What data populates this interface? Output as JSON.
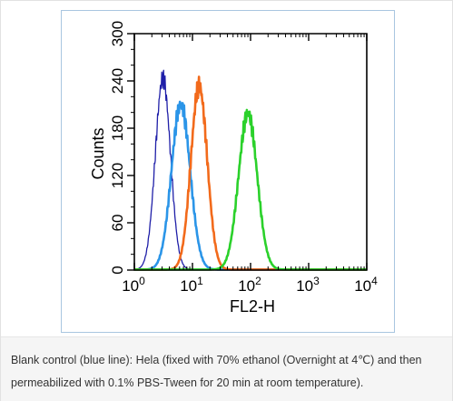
{
  "figure": {
    "caption": "Blank control (blue line): Hela (fixed with 70% ethanol (Overnight at 4℃) and then permeabilized with 0.1% PBS-Tween for 20 min at room temperature)."
  },
  "chart_data": {
    "type": "line",
    "xlabel": "FL2-H",
    "ylabel": "Counts",
    "xscale": "log",
    "xlim": [
      1,
      10000
    ],
    "ylim": [
      0,
      300
    ],
    "x_tick_values": [
      1,
      10,
      100,
      1000,
      10000
    ],
    "x_tick_labels": [
      {
        "base": "10",
        "exp": "0"
      },
      {
        "base": "10",
        "exp": "1"
      },
      {
        "base": "10",
        "exp": "2"
      },
      {
        "base": "10",
        "exp": "3"
      },
      {
        "base": "10",
        "exp": "4"
      }
    ],
    "y_ticks": [
      0,
      60,
      120,
      180,
      240,
      300
    ],
    "y_tick_labels": [
      "0",
      "60",
      "120",
      "180",
      "240",
      "300"
    ],
    "grid": false,
    "legend": "none",
    "series": [
      {
        "color": "#1f1fa8",
        "peak_x": 3.1,
        "peak_y": 243,
        "spread": 0.13
      },
      {
        "color": "#2b95e8",
        "peak_x": 6.3,
        "peak_y": 210,
        "spread": 0.16
      },
      {
        "color": "#f26a1b",
        "peak_x": 13,
        "peak_y": 233,
        "spread": 0.14
      },
      {
        "color": "#2bd12b",
        "peak_x": 90,
        "peak_y": 198,
        "spread": 0.16
      }
    ]
  }
}
